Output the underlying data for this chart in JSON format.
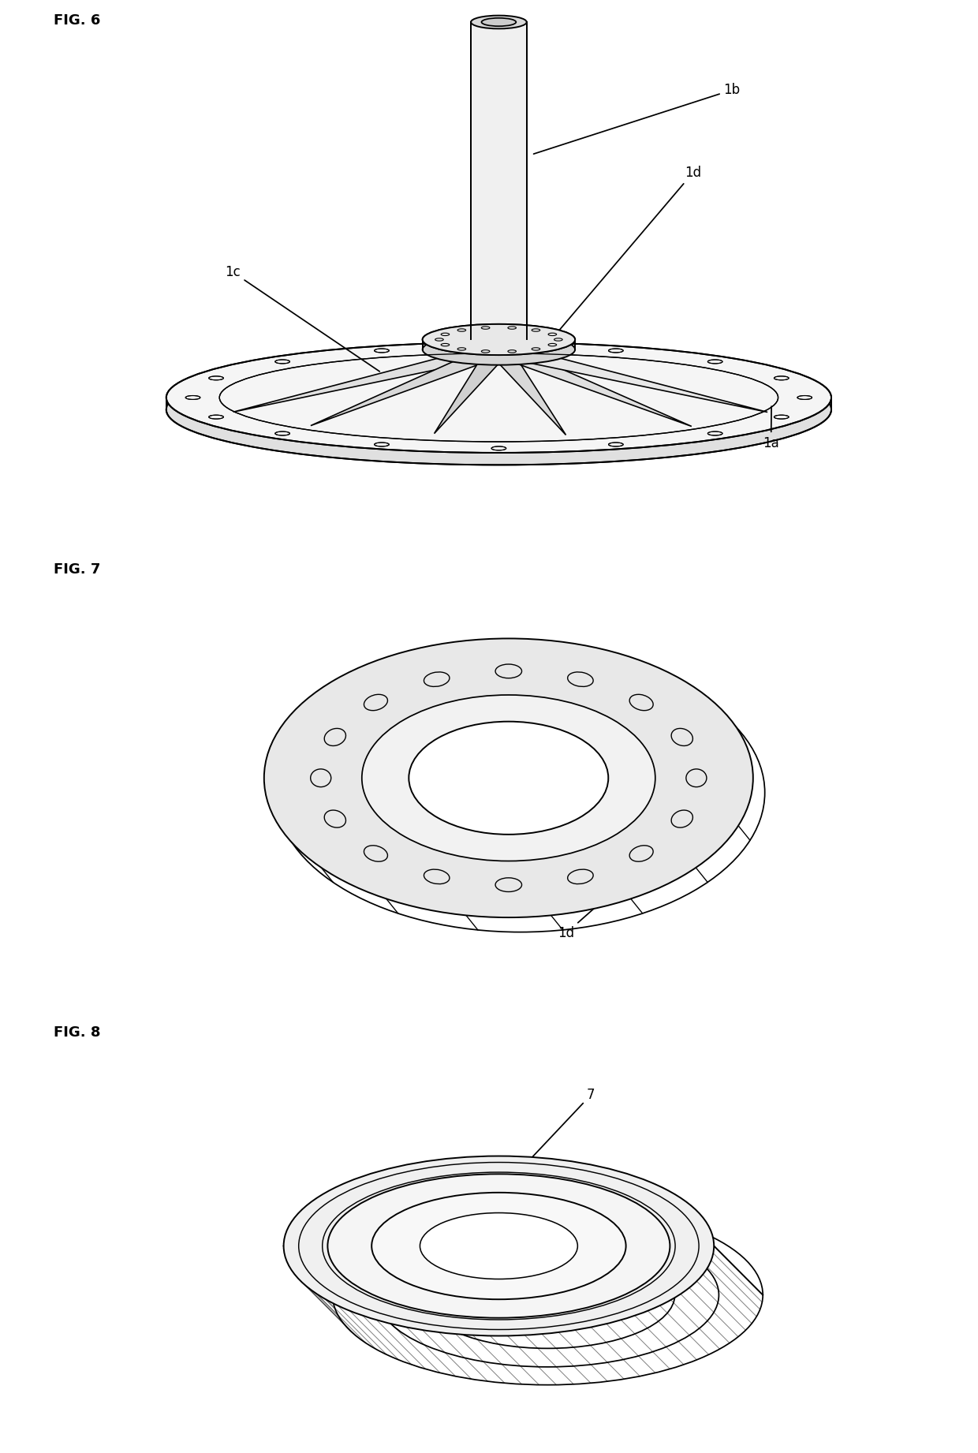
{
  "background_color": "#ffffff",
  "fig6_label": "FIG. 6",
  "fig7_label": "FIG. 7",
  "fig8_label": "FIG. 8",
  "label_1a": "1a",
  "label_1b": "1b",
  "label_1c": "1c",
  "label_1d": "1d",
  "label_7": "7",
  "line_color": "#000000",
  "line_width": 1.4,
  "annotation_fontsize": 12,
  "fig_label_fontsize": 13
}
